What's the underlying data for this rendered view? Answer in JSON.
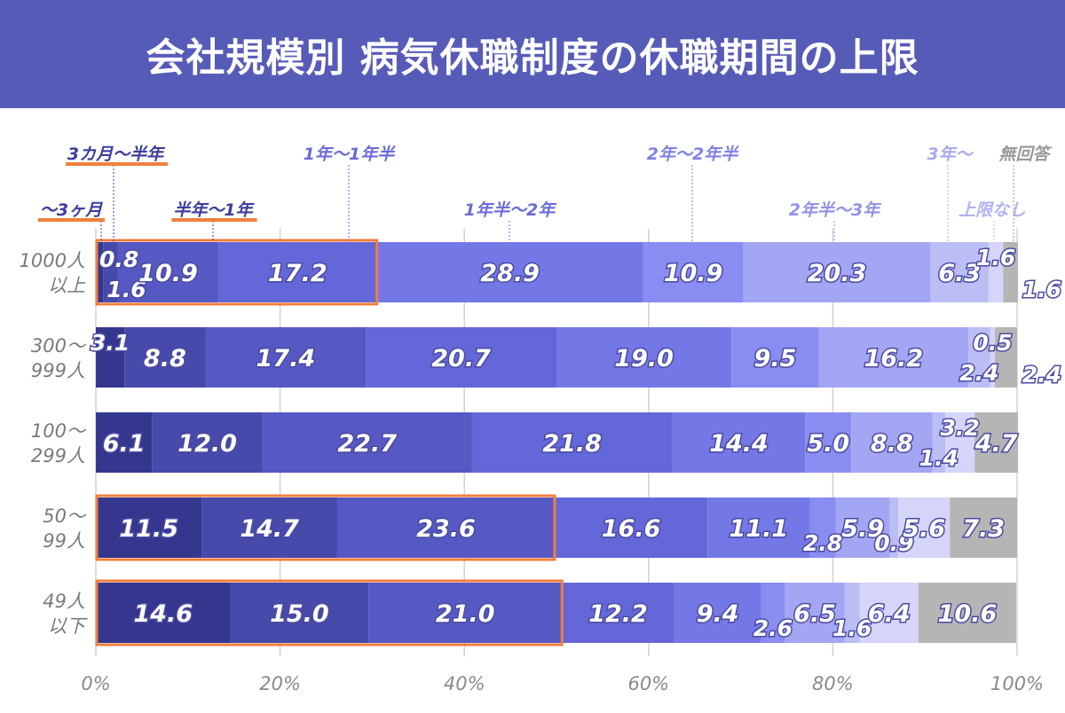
{
  "title": "会社規模別 病気休職制度の休職期間の上限",
  "chart_data": {
    "type": "bar",
    "orientation": "horizontal",
    "stacked": true,
    "xlim": [
      0,
      100
    ],
    "x_ticks": [
      "0%",
      "20%",
      "40%",
      "60%",
      "80%",
      "100%"
    ],
    "categories": [
      [
        "1000人",
        "以上"
      ],
      [
        "300〜",
        "999人"
      ],
      [
        "100〜",
        "299人"
      ],
      [
        "50〜",
        "99人"
      ],
      [
        "49人",
        "以下"
      ]
    ],
    "series": [
      {
        "name": "〜3ヶ月",
        "color": "#35378f",
        "values": [
          0.8,
          3.1,
          6.1,
          11.5,
          14.6
        ]
      },
      {
        "name": "3カ月〜半年",
        "color": "#4749ab",
        "values": [
          1.6,
          8.8,
          12.0,
          14.7,
          15.0
        ]
      },
      {
        "name": "半年〜1年",
        "color": "#5658c4",
        "values": [
          10.9,
          17.4,
          22.7,
          23.6,
          21.0
        ]
      },
      {
        "name": "1年〜1年半",
        "color": "#6467d8",
        "values": [
          17.2,
          20.7,
          21.8,
          16.6,
          12.2
        ]
      },
      {
        "name": "1年半〜2年",
        "color": "#7478e6",
        "values": [
          28.9,
          19.0,
          14.4,
          11.1,
          9.4
        ]
      },
      {
        "name": "2年〜2年半",
        "color": "#898cf0",
        "values": [
          10.9,
          9.5,
          5.0,
          2.8,
          2.6
        ]
      },
      {
        "name": "2年半〜3年",
        "color": "#a3a6f2",
        "values": [
          20.3,
          16.2,
          8.8,
          5.9,
          6.5
        ]
      },
      {
        "name": "3年〜",
        "color": "#bbbdf5",
        "values": [
          6.3,
          2.4,
          1.4,
          0.9,
          1.6
        ]
      },
      {
        "name": "上限なし",
        "color": "#d4d5f8",
        "values": [
          1.6,
          0.5,
          3.2,
          5.6,
          6.4
        ]
      },
      {
        "name": "無回答",
        "color": "#b5b5b5",
        "values": [
          1.6,
          2.4,
          4.7,
          7.3,
          10.6
        ]
      }
    ],
    "value_labels": [
      [
        "0.8",
        "1.6",
        "10.9",
        "17.2",
        "28.9",
        "10.9",
        "20.3",
        "6.3",
        "1.6",
        "1.6"
      ],
      [
        "3.1",
        "8.8",
        "17.4",
        "20.7",
        "19.0",
        "9.5",
        "16.2",
        "2.4",
        "0.5",
        "2.4"
      ],
      [
        "6.1",
        "12.0",
        "22.7",
        "21.8",
        "14.4",
        "5.0",
        "8.8",
        "1.4",
        "3.2",
        "4.7"
      ],
      [
        "11.5",
        "14.7",
        "23.6",
        "16.6",
        "11.1",
        "2.8",
        "5.9",
        "0.9",
        "5.6",
        "7.3"
      ],
      [
        "14.6",
        "15.0",
        "21.0",
        "12.2",
        "9.4",
        "2.6",
        "6.5",
        "1.6",
        "6.4",
        "10.6"
      ]
    ],
    "highlight_boxes": [
      {
        "row": 0,
        "from_series": 0,
        "to_series": 3,
        "color": "#f07f3c"
      },
      {
        "row": 3,
        "from_series": 0,
        "to_series": 2,
        "color": "#f07f3c"
      },
      {
        "row": 4,
        "from_series": 0,
        "to_series": 2,
        "color": "#f07f3c"
      }
    ],
    "legend_placement": "top",
    "underlined_legend_series": [
      0,
      1,
      2
    ],
    "underline_color": "#f07f3c",
    "grid": true
  }
}
